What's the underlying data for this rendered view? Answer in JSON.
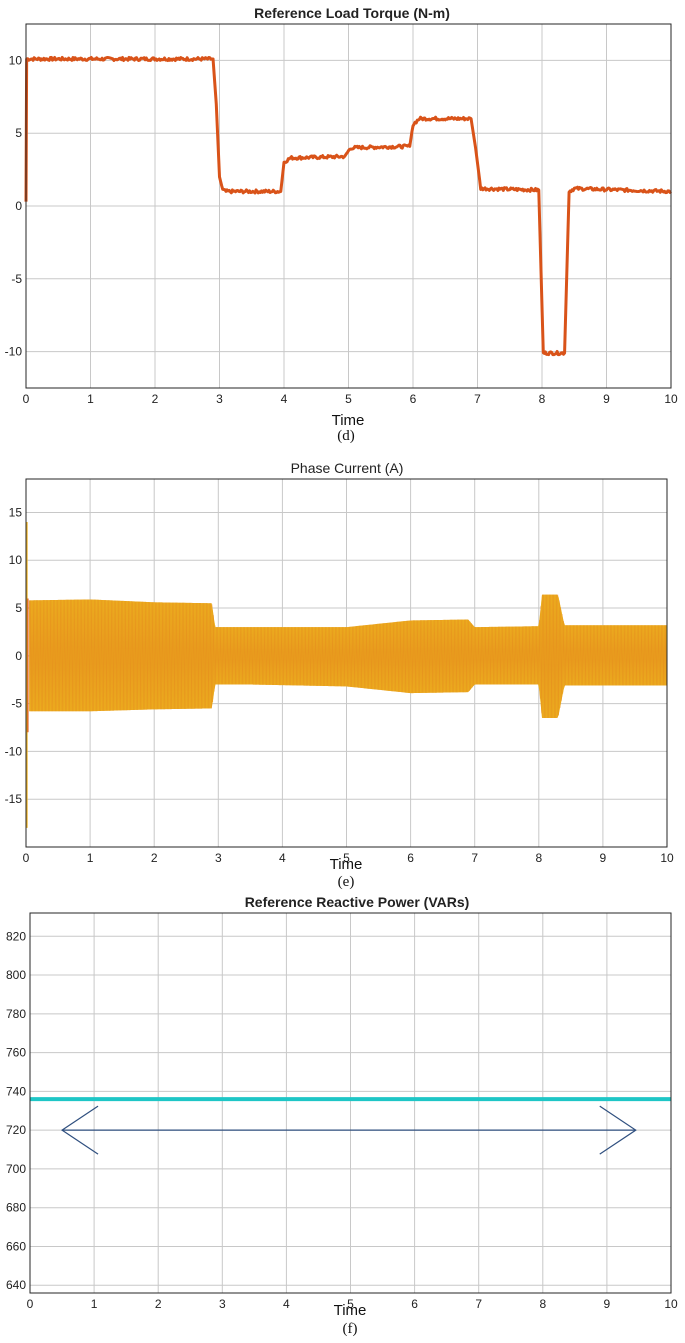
{
  "chart_data": [
    {
      "type": "line",
      "title": "Reference Load Torque (N-m)",
      "xlabel": "Time",
      "ylabel": "",
      "caption": "(d)",
      "xlim": [
        0,
        10
      ],
      "ylim": [
        -12.5,
        12.5
      ],
      "xticks": [
        0,
        1,
        2,
        3,
        4,
        5,
        6,
        7,
        8,
        9,
        10
      ],
      "yticks": [
        -10,
        -5,
        0,
        5,
        10
      ],
      "grid": true,
      "color": "#d95319",
      "series": [
        {
          "x": [
            0,
            0.01,
            2.9,
            2.95,
            3.0,
            3.05,
            3.1,
            3.95,
            4.0,
            4.1,
            4.95,
            5.0,
            5.05,
            5.95,
            6.0,
            6.1,
            6.9,
            6.97,
            7.05,
            7.95,
            8.02,
            8.35,
            8.42,
            8.5,
            10.0
          ],
          "y": [
            0.3,
            10.1,
            10.1,
            7.0,
            2.0,
            1.1,
            1.0,
            1.0,
            3.0,
            3.3,
            3.4,
            3.8,
            4.0,
            4.1,
            5.6,
            6.0,
            6.0,
            4.0,
            1.2,
            1.1,
            -10.1,
            -10.1,
            1.0,
            1.2,
            1.0
          ]
        }
      ]
    },
    {
      "type": "line",
      "title": "Phase Current (A)",
      "xlabel": "Time",
      "ylabel": "",
      "caption": "(e)",
      "xlim": [
        0,
        10
      ],
      "ylim": [
        -20,
        18.5
      ],
      "xticks": [
        0,
        1,
        2,
        3,
        4,
        5,
        6,
        7,
        8,
        9,
        10
      ],
      "yticks": [
        -15,
        -10,
        -5,
        0,
        5,
        10,
        15
      ],
      "grid": true,
      "colors": [
        "#d95319",
        "#edb120"
      ],
      "envelope": {
        "x": [
          0.05,
          1.0,
          2.0,
          2.9,
          2.95,
          3.5,
          5.0,
          6.0,
          6.9,
          7.0,
          8.0,
          8.05,
          8.3,
          8.4,
          10.0
        ],
        "upper": [
          5.8,
          5.9,
          5.6,
          5.5,
          3.0,
          3.0,
          3.0,
          3.7,
          3.8,
          3.0,
          3.1,
          6.4,
          6.4,
          3.2,
          3.2
        ],
        "lower": [
          -5.8,
          -5.8,
          -5.6,
          -5.5,
          -3.0,
          -3.0,
          -3.2,
          -3.9,
          -3.8,
          -3.0,
          -3.0,
          -6.5,
          -6.5,
          -3.1,
          -3.1
        ]
      },
      "startup_spike": [
        14,
        -18
      ]
    },
    {
      "type": "line",
      "title": "Reference Reactive Power (VARs)",
      "xlabel": "Time",
      "ylabel": "",
      "caption": "(f)",
      "xlim": [
        0,
        10
      ],
      "ylim": [
        636,
        832
      ],
      "xticks": [
        0,
        1,
        2,
        3,
        4,
        5,
        6,
        7,
        8,
        9,
        10
      ],
      "yticks": [
        640,
        660,
        680,
        700,
        720,
        740,
        760,
        780,
        800,
        820
      ],
      "grid": true,
      "color": "#1ec6c6",
      "series": [
        {
          "x": [
            0,
            10
          ],
          "y": [
            736,
            736
          ]
        }
      ],
      "annotation": {
        "type": "double-arrow",
        "color": "#2f4f7f",
        "y": 720,
        "x": [
          0.5,
          9.45
        ]
      }
    }
  ]
}
